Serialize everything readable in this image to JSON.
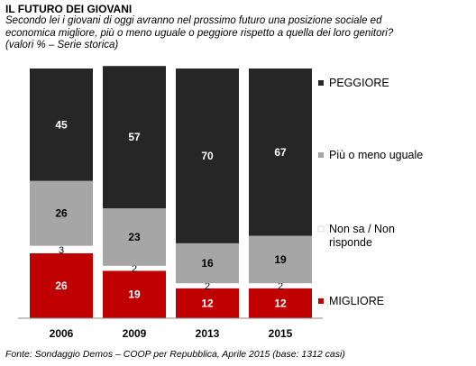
{
  "title": "IL FUTURO DEI GIOVANI",
  "subtitle_line1": "Secondo lei i giovani di oggi avranno nel prossimo futuro una posizione sociale ed",
  "subtitle_line2": "economica migliore, più o meno uguale o peggiore rispetto a quella dei loro genitori?",
  "subtitle_line3": "(valori % – Serie storica)",
  "source": "Fonte: Sondaggio Demos – COOP per Repubblica, Aprile 2015 (base: 1312 casi)",
  "chart_data": {
    "type": "bar",
    "stacked": true,
    "orientation": "vertical",
    "categories": [
      "2006",
      "2009",
      "2013",
      "2015"
    ],
    "ylim": [
      0,
      100
    ],
    "series": [
      {
        "name": "MIGLIORE",
        "values": [
          26,
          19,
          12,
          12
        ],
        "color": "#c00000",
        "label_color": "#ffffff"
      },
      {
        "name": "Non sa / Non risponde",
        "values": [
          3,
          2,
          2,
          2
        ],
        "color": "#ffffff",
        "label_color": "#000000"
      },
      {
        "name": "Più o meno uguale",
        "values": [
          26,
          23,
          16,
          19
        ],
        "color": "#a6a6a6",
        "label_color": "#000000"
      },
      {
        "name": "PEGGIORE",
        "values": [
          45,
          57,
          70,
          67
        ],
        "color": "#262626",
        "label_color": "#ffffff"
      }
    ],
    "legend": {
      "placement": "right",
      "entries": [
        {
          "label": "PEGGIORE",
          "color": "#262626"
        },
        {
          "label": "Più o meno uguale",
          "color": "#a6a6a6"
        },
        {
          "label_line1": "Non sa / Non",
          "label_line2": "risponde",
          "color": "#ffffff"
        },
        {
          "label": "MIGLIORE",
          "color": "#c00000"
        }
      ]
    }
  }
}
